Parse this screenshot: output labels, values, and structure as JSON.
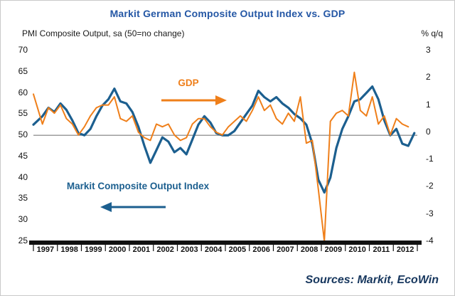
{
  "title": "Markit German Composite Output Index vs. GDP",
  "left_axis_title": "PMI Composite Output, sa (50=no change)",
  "right_axis_title": "% q/q",
  "sources": "Sources: Markit, EcoWin",
  "annotations": {
    "gdp_label": "GDP",
    "pmi_label": "Markit Composite Output Index"
  },
  "colors": {
    "pmi": "#1c5f8f",
    "gdp": "#ef7f1a",
    "title": "#2457a5",
    "sources": "#17375e",
    "axis": "#111111",
    "ref_line": "#6b6b6b"
  },
  "chart_data": {
    "type": "line",
    "title": "Markit German Composite Output Index vs. GDP",
    "x_range": [
      1997,
      2013
    ],
    "x_tick_labels": [
      "1997",
      "1998",
      "1999",
      "2000",
      "2001",
      "2002",
      "2003",
      "2004",
      "2005",
      "2006",
      "2007",
      "2008",
      "2009",
      "2010",
      "2011",
      "2012"
    ],
    "left_axis": {
      "label": "PMI Composite Output, sa (50=no change)",
      "ticks": [
        70,
        65,
        60,
        55,
        50,
        45,
        40,
        35,
        30,
        25
      ],
      "ylim": [
        25,
        70
      ]
    },
    "right_axis": {
      "label": "% q/q",
      "ticks": [
        3,
        2,
        1,
        0,
        -1,
        -2,
        -3,
        -4
      ],
      "ylim": [
        -4,
        3
      ]
    },
    "reference_value_left": 50,
    "grid": false,
    "legend": "in-plot arrow annotations",
    "series": [
      {
        "name": "Markit Composite Output Index",
        "axis": "left",
        "color": "#1c5f8f",
        "x": [
          1997.0,
          1997.375,
          1997.625,
          1997.875,
          1998.125,
          1998.375,
          1998.625,
          1998.875,
          1999.125,
          1999.375,
          1999.625,
          1999.875,
          2000.125,
          2000.375,
          2000.625,
          2000.875,
          2001.125,
          2001.375,
          2001.625,
          2001.875,
          2002.125,
          2002.375,
          2002.625,
          2002.875,
          2003.125,
          2003.375,
          2003.625,
          2003.875,
          2004.125,
          2004.375,
          2004.625,
          2004.875,
          2005.125,
          2005.375,
          2005.625,
          2005.875,
          2006.125,
          2006.375,
          2006.625,
          2006.875,
          2007.125,
          2007.375,
          2007.625,
          2007.875,
          2008.125,
          2008.375,
          2008.625,
          2008.875,
          2009.125,
          2009.375,
          2009.625,
          2009.875,
          2010.125,
          2010.375,
          2010.625,
          2010.875,
          2011.125,
          2011.375,
          2011.625,
          2011.875,
          2012.125,
          2012.375,
          2012.625,
          2012.875
        ],
        "values": [
          52.5,
          54.5,
          56.5,
          55.5,
          57.5,
          56.0,
          53.5,
          50.5,
          50.0,
          51.5,
          54.5,
          57.0,
          58.5,
          61.0,
          58.0,
          57.5,
          55.5,
          52.0,
          47.5,
          43.5,
          46.5,
          49.5,
          48.5,
          46.0,
          47.0,
          45.5,
          49.0,
          52.5,
          54.5,
          53.0,
          50.5,
          50.0,
          50.0,
          51.0,
          53.0,
          55.0,
          57.0,
          60.5,
          59.0,
          58.0,
          59.0,
          57.5,
          56.5,
          55.0,
          54.0,
          52.5,
          48.0,
          39.5,
          36.5,
          40.0,
          47.0,
          51.5,
          54.5,
          58.0,
          58.5,
          60.0,
          61.5,
          58.5,
          53.5,
          50.0,
          51.5,
          48.0,
          47.5,
          50.5
        ]
      },
      {
        "name": "GDP (% q/q)",
        "axis": "right",
        "color": "#ef7f1a",
        "x": [
          1997.0,
          1997.375,
          1997.625,
          1997.875,
          1998.125,
          1998.375,
          1998.625,
          1998.875,
          1999.125,
          1999.375,
          1999.625,
          1999.875,
          2000.125,
          2000.375,
          2000.625,
          2000.875,
          2001.125,
          2001.375,
          2001.625,
          2001.875,
          2002.125,
          2002.375,
          2002.625,
          2002.875,
          2003.125,
          2003.375,
          2003.625,
          2003.875,
          2004.125,
          2004.375,
          2004.625,
          2004.875,
          2005.125,
          2005.375,
          2005.625,
          2005.875,
          2006.125,
          2006.375,
          2006.625,
          2006.875,
          2007.125,
          2007.375,
          2007.625,
          2007.875,
          2008.125,
          2008.375,
          2008.625,
          2008.875,
          2009.125,
          2009.375,
          2009.625,
          2009.875,
          2010.125,
          2010.375,
          2010.625,
          2010.875,
          2011.125,
          2011.375,
          2011.625,
          2011.875,
          2012.125,
          2012.375,
          2012.625
        ],
        "values": [
          1.4,
          0.3,
          0.9,
          0.7,
          1.0,
          0.5,
          0.3,
          -0.1,
          0.2,
          0.6,
          0.9,
          1.0,
          1.0,
          1.3,
          0.5,
          0.4,
          0.6,
          0.0,
          -0.2,
          -0.3,
          0.3,
          0.2,
          0.3,
          -0.1,
          -0.3,
          -0.2,
          0.3,
          0.5,
          0.5,
          0.2,
          0.0,
          -0.1,
          0.2,
          0.4,
          0.6,
          0.4,
          0.8,
          1.3,
          0.8,
          1.0,
          0.5,
          0.3,
          0.7,
          0.4,
          1.3,
          -0.4,
          -0.3,
          -2.1,
          -4.0,
          0.4,
          0.7,
          0.8,
          0.6,
          2.2,
          0.8,
          0.6,
          1.3,
          0.3,
          0.6,
          -0.1,
          0.5,
          0.3,
          0.2
        ]
      }
    ]
  }
}
